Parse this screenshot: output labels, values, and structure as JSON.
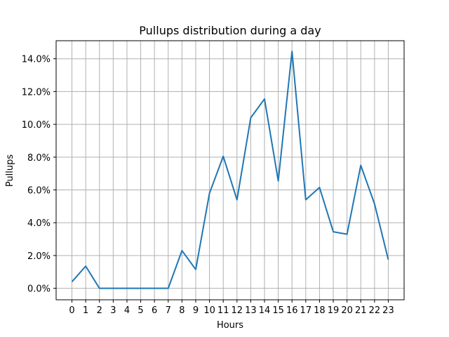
{
  "chart_data": {
    "type": "line",
    "title": "Pullups distribution during a day",
    "xlabel": "Hours",
    "ylabel": "Pullups",
    "x": [
      0,
      1,
      2,
      3,
      4,
      5,
      6,
      7,
      8,
      9,
      10,
      11,
      12,
      13,
      14,
      15,
      16,
      17,
      18,
      19,
      20,
      21,
      22,
      23
    ],
    "series": [
      {
        "values": [
          0.4,
          1.35,
          0.0,
          0.0,
          0.0,
          0.0,
          0.0,
          0.0,
          2.3,
          1.15,
          5.8,
          8.05,
          5.4,
          10.4,
          11.55,
          6.55,
          14.45,
          5.4,
          6.15,
          3.45,
          3.3,
          7.5,
          5.15,
          1.75
        ],
        "color": "#1f77b4"
      }
    ],
    "ylim": [
      -0.7,
      15.1
    ],
    "yticks": [
      "0.0%",
      "2.0%",
      "4.0%",
      "6.0%",
      "8.0%",
      "10.0%",
      "12.0%",
      "14.0%"
    ],
    "ytick_values": [
      0,
      2,
      4,
      6,
      8,
      10,
      12,
      14
    ],
    "xticks": [
      "0",
      "1",
      "2",
      "3",
      "4",
      "5",
      "6",
      "7",
      "8",
      "9",
      "10",
      "11",
      "12",
      "13",
      "14",
      "15",
      "16",
      "17",
      "18",
      "19",
      "20",
      "21",
      "22",
      "23"
    ],
    "grid": true,
    "legend": "none"
  }
}
